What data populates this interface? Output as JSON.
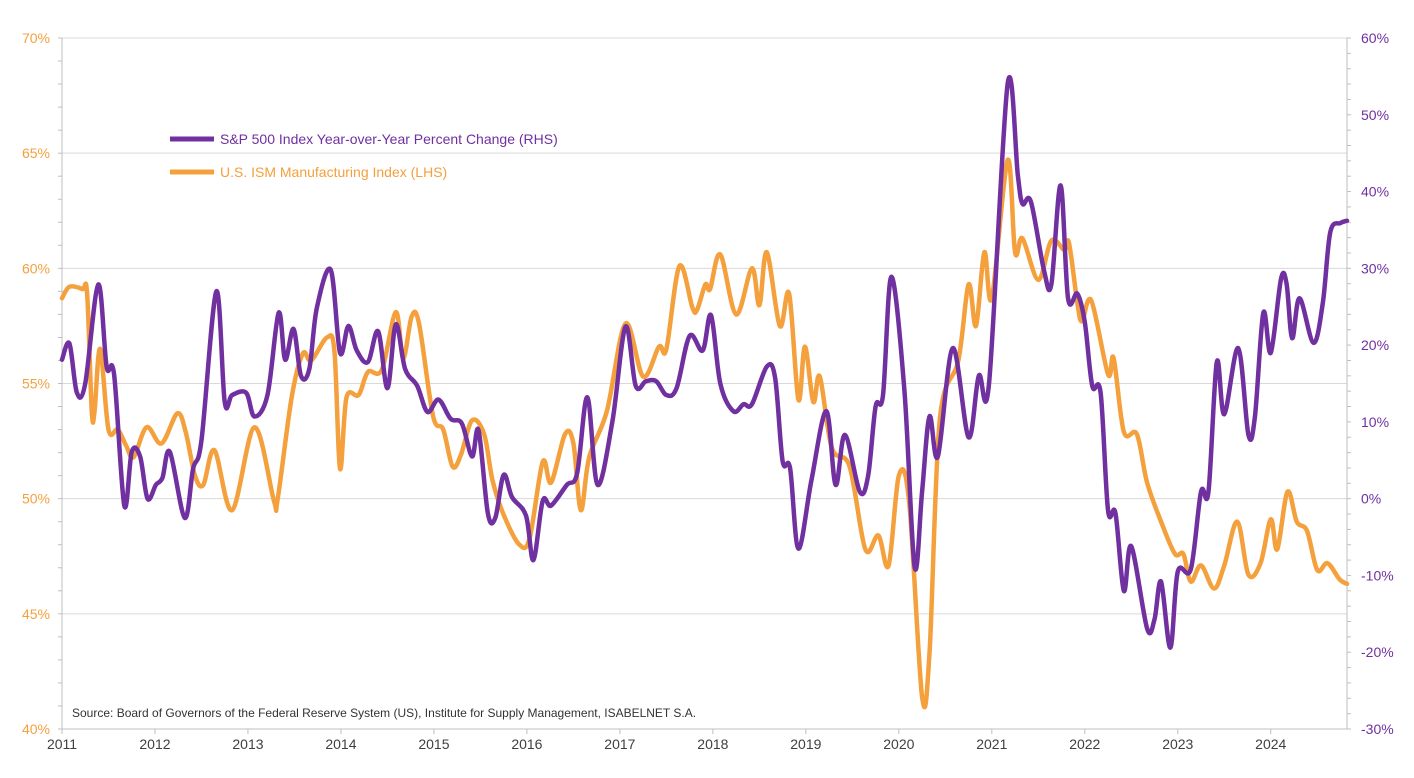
{
  "chart_data": {
    "type": "line",
    "title": "",
    "source": "Source: Board of Governors of the Federal Reserve System (US), Institute for Supply Management, ISABELNET S.A.",
    "legend_position": "top-left",
    "grid": true,
    "x_ticks": [
      "2011",
      "2012",
      "2013",
      "2014",
      "2015",
      "2016",
      "2017",
      "2018",
      "2019",
      "2020",
      "2021",
      "2022",
      "2023",
      "2024"
    ],
    "xlim": [
      2011,
      2024.82
    ],
    "y_left": {
      "label": "",
      "ylim": [
        40,
        70
      ],
      "ticks": [
        "40%",
        "45%",
        "50%",
        "55%",
        "60%",
        "65%",
        "70%"
      ],
      "color": "#f4a03c"
    },
    "y_right": {
      "label": "",
      "ylim": [
        -30,
        60
      ],
      "ticks": [
        "-30%",
        "-20%",
        "-10%",
        "0%",
        "10%",
        "20%",
        "30%",
        "40%",
        "50%",
        "60%"
      ],
      "color": "#7030a0"
    },
    "series": [
      {
        "name": "S&P 500 Index Year-over-Year Percent Change (RHS)",
        "axis": "right",
        "color": "#7030a0",
        "points": [
          [
            2011.0,
            18.1
          ],
          [
            2011.08,
            20.2
          ],
          [
            2011.16,
            13.8
          ],
          [
            2011.25,
            15.0
          ],
          [
            2011.39,
            27.9
          ],
          [
            2011.48,
            17.2
          ],
          [
            2011.56,
            16.2
          ],
          [
            2011.67,
            -0.9
          ],
          [
            2011.75,
            6.1
          ],
          [
            2011.84,
            5.5
          ],
          [
            2011.92,
            0.0
          ],
          [
            2012.01,
            1.8
          ],
          [
            2012.08,
            2.7
          ],
          [
            2012.16,
            6.1
          ],
          [
            2012.32,
            -2.5
          ],
          [
            2012.41,
            3.9
          ],
          [
            2012.5,
            7.6
          ],
          [
            2012.66,
            27.0
          ],
          [
            2012.75,
            12.6
          ],
          [
            2012.83,
            13.5
          ],
          [
            2012.98,
            13.8
          ],
          [
            2013.07,
            10.7
          ],
          [
            2013.21,
            13.5
          ],
          [
            2013.33,
            24.2
          ],
          [
            2013.4,
            18.1
          ],
          [
            2013.49,
            22.1
          ],
          [
            2013.57,
            16.0
          ],
          [
            2013.66,
            16.9
          ],
          [
            2013.74,
            24.8
          ],
          [
            2013.89,
            29.8
          ],
          [
            2013.99,
            19.0
          ],
          [
            2014.08,
            22.5
          ],
          [
            2014.17,
            19.3
          ],
          [
            2014.29,
            17.8
          ],
          [
            2014.4,
            21.8
          ],
          [
            2014.5,
            14.4
          ],
          [
            2014.59,
            22.7
          ],
          [
            2014.69,
            16.9
          ],
          [
            2014.82,
            14.7
          ],
          [
            2014.93,
            11.3
          ],
          [
            2015.05,
            12.9
          ],
          [
            2015.18,
            10.4
          ],
          [
            2015.3,
            9.8
          ],
          [
            2015.41,
            5.5
          ],
          [
            2015.48,
            8.9
          ],
          [
            2015.58,
            -1.9
          ],
          [
            2015.66,
            -2.5
          ],
          [
            2015.75,
            3.1
          ],
          [
            2015.84,
            0.2
          ],
          [
            2015.99,
            -2.2
          ],
          [
            2016.07,
            -8.0
          ],
          [
            2016.17,
            -0.3
          ],
          [
            2016.26,
            -0.9
          ],
          [
            2016.43,
            1.8
          ],
          [
            2016.54,
            3.3
          ],
          [
            2016.65,
            13.2
          ],
          [
            2016.76,
            1.8
          ],
          [
            2016.92,
            10.1
          ],
          [
            2017.06,
            22.4
          ],
          [
            2017.17,
            14.7
          ],
          [
            2017.28,
            15.3
          ],
          [
            2017.39,
            15.3
          ],
          [
            2017.5,
            13.5
          ],
          [
            2017.61,
            14.4
          ],
          [
            2017.75,
            21.2
          ],
          [
            2017.89,
            19.3
          ],
          [
            2017.98,
            23.9
          ],
          [
            2018.08,
            15.0
          ],
          [
            2018.22,
            11.4
          ],
          [
            2018.33,
            12.3
          ],
          [
            2018.42,
            12.3
          ],
          [
            2018.58,
            17.2
          ],
          [
            2018.67,
            15.7
          ],
          [
            2018.75,
            4.9
          ],
          [
            2018.83,
            4.0
          ],
          [
            2018.92,
            -6.5
          ],
          [
            2019.06,
            2.4
          ],
          [
            2019.22,
            11.4
          ],
          [
            2019.32,
            1.8
          ],
          [
            2019.42,
            8.3
          ],
          [
            2019.58,
            0.9
          ],
          [
            2019.67,
            3.0
          ],
          [
            2019.75,
            12.0
          ],
          [
            2019.83,
            13.5
          ],
          [
            2019.92,
            28.9
          ],
          [
            2020.06,
            14.1
          ],
          [
            2020.17,
            -8.9
          ],
          [
            2020.25,
            0.9
          ],
          [
            2020.33,
            10.7
          ],
          [
            2020.42,
            5.5
          ],
          [
            2020.58,
            19.6
          ],
          [
            2020.75,
            8.0
          ],
          [
            2020.86,
            16.0
          ],
          [
            2020.97,
            15.0
          ],
          [
            2021.17,
            54.0
          ],
          [
            2021.28,
            42.1
          ],
          [
            2021.33,
            38.4
          ],
          [
            2021.42,
            38.7
          ],
          [
            2021.56,
            29.8
          ],
          [
            2021.64,
            27.9
          ],
          [
            2021.74,
            40.8
          ],
          [
            2021.82,
            26.1
          ],
          [
            2021.92,
            26.7
          ],
          [
            2022.0,
            23.0
          ],
          [
            2022.08,
            14.7
          ],
          [
            2022.17,
            13.8
          ],
          [
            2022.25,
            -1.5
          ],
          [
            2022.33,
            -1.9
          ],
          [
            2022.42,
            -12.0
          ],
          [
            2022.5,
            -6.2
          ],
          [
            2022.67,
            -16.9
          ],
          [
            2022.75,
            -15.7
          ],
          [
            2022.82,
            -10.8
          ],
          [
            2022.92,
            -19.4
          ],
          [
            2023.0,
            -9.5
          ],
          [
            2023.14,
            -9.2
          ],
          [
            2023.25,
            0.9
          ],
          [
            2023.33,
            0.9
          ],
          [
            2023.42,
            17.8
          ],
          [
            2023.5,
            11.0
          ],
          [
            2023.65,
            19.6
          ],
          [
            2023.76,
            8.3
          ],
          [
            2023.83,
            10.7
          ],
          [
            2023.92,
            24.2
          ],
          [
            2024.0,
            19.0
          ],
          [
            2024.11,
            28.6
          ],
          [
            2024.17,
            28.0
          ],
          [
            2024.23,
            20.9
          ],
          [
            2024.31,
            26.1
          ],
          [
            2024.46,
            20.3
          ],
          [
            2024.56,
            25.5
          ],
          [
            2024.64,
            34.7
          ],
          [
            2024.75,
            35.9
          ],
          [
            2024.82,
            36.2
          ]
        ]
      },
      {
        "name": "U.S. ISM Manufacturing Index (LHS)",
        "axis": "left",
        "color": "#f4a03c",
        "points": [
          [
            2011.0,
            58.7
          ],
          [
            2011.08,
            59.2
          ],
          [
            2011.22,
            59.1
          ],
          [
            2011.27,
            58.9
          ],
          [
            2011.32,
            53.8
          ],
          [
            2011.35,
            53.8
          ],
          [
            2011.41,
            56.5
          ],
          [
            2011.5,
            53.0
          ],
          [
            2011.6,
            53.0
          ],
          [
            2011.69,
            52.3
          ],
          [
            2011.77,
            51.8
          ],
          [
            2011.91,
            53.1
          ],
          [
            2012.07,
            52.4
          ],
          [
            2012.24,
            53.7
          ],
          [
            2012.33,
            52.9
          ],
          [
            2012.43,
            51.0
          ],
          [
            2012.52,
            50.6
          ],
          [
            2012.64,
            52.1
          ],
          [
            2012.83,
            49.5
          ],
          [
            2013.07,
            53.1
          ],
          [
            2013.28,
            49.9
          ],
          [
            2013.32,
            50.0
          ],
          [
            2013.47,
            54.4
          ],
          [
            2013.59,
            56.3
          ],
          [
            2013.68,
            56.0
          ],
          [
            2013.85,
            57.0
          ],
          [
            2013.93,
            56.4
          ],
          [
            2013.99,
            51.3
          ],
          [
            2014.06,
            54.4
          ],
          [
            2014.19,
            54.5
          ],
          [
            2014.29,
            55.5
          ],
          [
            2014.44,
            55.6
          ],
          [
            2014.59,
            58.1
          ],
          [
            2014.67,
            56.1
          ],
          [
            2014.76,
            57.9
          ],
          [
            2014.84,
            57.6
          ],
          [
            2014.99,
            53.6
          ],
          [
            2015.1,
            53.0
          ],
          [
            2015.2,
            51.4
          ],
          [
            2015.29,
            51.9
          ],
          [
            2015.41,
            53.4
          ],
          [
            2015.54,
            52.8
          ],
          [
            2015.63,
            50.8
          ],
          [
            2015.75,
            49.3
          ],
          [
            2015.92,
            48.0
          ],
          [
            2016.03,
            48.3
          ],
          [
            2016.17,
            51.6
          ],
          [
            2016.26,
            50.7
          ],
          [
            2016.41,
            52.8
          ],
          [
            2016.5,
            52.4
          ],
          [
            2016.58,
            49.5
          ],
          [
            2016.67,
            51.8
          ],
          [
            2016.86,
            53.8
          ],
          [
            2017.06,
            57.6
          ],
          [
            2017.25,
            55.3
          ],
          [
            2017.42,
            56.6
          ],
          [
            2017.5,
            56.5
          ],
          [
            2017.64,
            60.1
          ],
          [
            2017.78,
            58.3
          ],
          [
            2017.83,
            58.2
          ],
          [
            2017.92,
            59.3
          ],
          [
            2017.97,
            59.1
          ],
          [
            2018.08,
            60.6
          ],
          [
            2018.25,
            58.0
          ],
          [
            2018.42,
            60.0
          ],
          [
            2018.5,
            58.4
          ],
          [
            2018.58,
            60.7
          ],
          [
            2018.72,
            57.5
          ],
          [
            2018.82,
            58.9
          ],
          [
            2018.92,
            54.3
          ],
          [
            2018.99,
            56.6
          ],
          [
            2019.08,
            54.2
          ],
          [
            2019.15,
            55.3
          ],
          [
            2019.28,
            52.2
          ],
          [
            2019.47,
            51.4
          ],
          [
            2019.64,
            47.8
          ],
          [
            2019.78,
            48.4
          ],
          [
            2019.89,
            47.1
          ],
          [
            2020.0,
            51.0
          ],
          [
            2020.11,
            49.9
          ],
          [
            2020.25,
            41.4
          ],
          [
            2020.33,
            43.3
          ],
          [
            2020.44,
            53.4
          ],
          [
            2020.64,
            56.0
          ],
          [
            2020.75,
            59.3
          ],
          [
            2020.83,
            57.5
          ],
          [
            2020.92,
            60.7
          ],
          [
            2021.0,
            58.7
          ],
          [
            2021.17,
            64.7
          ],
          [
            2021.25,
            60.7
          ],
          [
            2021.33,
            61.3
          ],
          [
            2021.5,
            59.5
          ],
          [
            2021.64,
            61.2
          ],
          [
            2021.78,
            60.8
          ],
          [
            2021.83,
            61.1
          ],
          [
            2021.92,
            58.5
          ],
          [
            2021.97,
            57.7
          ],
          [
            2022.07,
            58.6
          ],
          [
            2022.25,
            55.4
          ],
          [
            2022.31,
            56.1
          ],
          [
            2022.42,
            52.9
          ],
          [
            2022.56,
            52.8
          ],
          [
            2022.67,
            50.7
          ],
          [
            2022.83,
            48.9
          ],
          [
            2022.97,
            47.6
          ],
          [
            2023.06,
            47.6
          ],
          [
            2023.14,
            46.4
          ],
          [
            2023.25,
            47.1
          ],
          [
            2023.39,
            46.1
          ],
          [
            2023.5,
            47.1
          ],
          [
            2023.64,
            49.0
          ],
          [
            2023.76,
            46.7
          ],
          [
            2023.89,
            47.2
          ],
          [
            2024.0,
            49.1
          ],
          [
            2024.07,
            47.8
          ],
          [
            2024.18,
            50.3
          ],
          [
            2024.28,
            49.0
          ],
          [
            2024.39,
            48.6
          ],
          [
            2024.5,
            46.9
          ],
          [
            2024.61,
            47.2
          ],
          [
            2024.74,
            46.5
          ],
          [
            2024.82,
            46.3
          ]
        ]
      }
    ]
  }
}
